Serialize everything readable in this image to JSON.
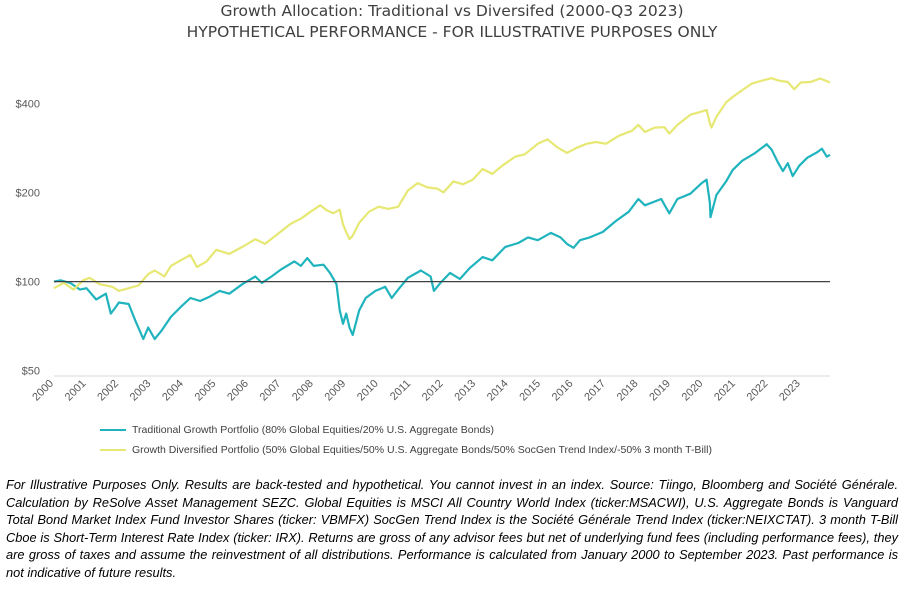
{
  "chart_data": {
    "type": "line",
    "title": "Growth Allocation: Traditional vs Diversifed (2000-Q3 2023)",
    "subtitle": "HYPOTHETICAL PERFORMANCE - FOR ILLUSTRATIVE PURPOSES ONLY",
    "y_scale": "log",
    "ylim": [
      48,
      560
    ],
    "xlim": [
      2000,
      2023.9
    ],
    "y_ticks": [
      {
        "value": 50,
        "label": "$50"
      },
      {
        "value": 100,
        "label": "$100"
      },
      {
        "value": 200,
        "label": "$200"
      },
      {
        "value": 400,
        "label": "$400"
      }
    ],
    "x_ticks": [
      "2000",
      "2001",
      "2002",
      "2003",
      "2004",
      "2005",
      "2006",
      "2007",
      "2008",
      "2009",
      "2010",
      "2011",
      "2012",
      "2013",
      "2014",
      "2015",
      "2016",
      "2017",
      "2018",
      "2019",
      "2020",
      "2021",
      "2022",
      "2023"
    ],
    "reference_line": 100,
    "series": [
      {
        "name": "Traditional Growth Portfolio (80% Global Equities/20% U.S. Aggregate Bonds)",
        "color": "#1fb4bd",
        "points": [
          [
            2000.0,
            100
          ],
          [
            2000.2,
            101
          ],
          [
            2000.5,
            99
          ],
          [
            2000.8,
            94
          ],
          [
            2001.0,
            95
          ],
          [
            2001.3,
            87
          ],
          [
            2001.6,
            91
          ],
          [
            2001.75,
            78
          ],
          [
            2001.9,
            82
          ],
          [
            2002.0,
            85
          ],
          [
            2002.3,
            84
          ],
          [
            2002.5,
            74
          ],
          [
            2002.75,
            64
          ],
          [
            2002.9,
            70
          ],
          [
            2003.1,
            64
          ],
          [
            2003.3,
            68
          ],
          [
            2003.6,
            76
          ],
          [
            2003.9,
            82
          ],
          [
            2004.2,
            88
          ],
          [
            2004.5,
            86
          ],
          [
            2004.8,
            89
          ],
          [
            2005.1,
            93
          ],
          [
            2005.4,
            91
          ],
          [
            2005.8,
            98
          ],
          [
            2006.2,
            104
          ],
          [
            2006.4,
            99
          ],
          [
            2006.7,
            104
          ],
          [
            2007.0,
            110
          ],
          [
            2007.4,
            117
          ],
          [
            2007.6,
            113
          ],
          [
            2007.8,
            120
          ],
          [
            2008.0,
            113
          ],
          [
            2008.3,
            114
          ],
          [
            2008.5,
            107
          ],
          [
            2008.7,
            98
          ],
          [
            2008.8,
            80
          ],
          [
            2008.9,
            72
          ],
          [
            2009.0,
            78
          ],
          [
            2009.1,
            70
          ],
          [
            2009.2,
            66
          ],
          [
            2009.4,
            80
          ],
          [
            2009.6,
            88
          ],
          [
            2009.9,
            93
          ],
          [
            2010.2,
            96
          ],
          [
            2010.4,
            88
          ],
          [
            2010.6,
            94
          ],
          [
            2010.9,
            103
          ],
          [
            2011.3,
            109
          ],
          [
            2011.6,
            104
          ],
          [
            2011.7,
            93
          ],
          [
            2011.9,
            99
          ],
          [
            2012.2,
            107
          ],
          [
            2012.5,
            102
          ],
          [
            2012.8,
            111
          ],
          [
            2013.2,
            121
          ],
          [
            2013.5,
            118
          ],
          [
            2013.9,
            131
          ],
          [
            2014.3,
            135
          ],
          [
            2014.6,
            141
          ],
          [
            2014.9,
            138
          ],
          [
            2015.3,
            146
          ],
          [
            2015.6,
            141
          ],
          [
            2015.8,
            134
          ],
          [
            2016.0,
            130
          ],
          [
            2016.2,
            138
          ],
          [
            2016.5,
            141
          ],
          [
            2016.9,
            147
          ],
          [
            2017.3,
            160
          ],
          [
            2017.7,
            172
          ],
          [
            2018.0,
            190
          ],
          [
            2018.2,
            181
          ],
          [
            2018.7,
            190
          ],
          [
            2018.95,
            170
          ],
          [
            2019.2,
            190
          ],
          [
            2019.6,
            198
          ],
          [
            2019.95,
            215
          ],
          [
            2020.1,
            221
          ],
          [
            2020.2,
            184
          ],
          [
            2020.22,
            165
          ],
          [
            2020.4,
            196
          ],
          [
            2020.7,
            218
          ],
          [
            2020.9,
            238
          ],
          [
            2021.2,
            256
          ],
          [
            2021.6,
            272
          ],
          [
            2021.95,
            291
          ],
          [
            2022.1,
            279
          ],
          [
            2022.3,
            252
          ],
          [
            2022.45,
            236
          ],
          [
            2022.6,
            251
          ],
          [
            2022.75,
            227
          ],
          [
            2022.95,
            246
          ],
          [
            2023.2,
            262
          ],
          [
            2023.5,
            273
          ],
          [
            2023.65,
            281
          ],
          [
            2023.8,
            264
          ],
          [
            2023.9,
            268
          ]
        ]
      },
      {
        "name": "Growth Diversified Portfolio (50% Global Equities/50% U.S. Aggregate Bonds/50% SocGen Trend Index/-50% 3 month T-Bill)",
        "color": "#e7e873",
        "points": [
          [
            2000.0,
            95
          ],
          [
            2000.3,
            99
          ],
          [
            2000.6,
            94
          ],
          [
            2000.9,
            101
          ],
          [
            2001.1,
            103
          ],
          [
            2001.4,
            98
          ],
          [
            2001.8,
            96
          ],
          [
            2002.0,
            93
          ],
          [
            2002.3,
            95
          ],
          [
            2002.6,
            97
          ],
          [
            2002.9,
            106
          ],
          [
            2003.1,
            109
          ],
          [
            2003.4,
            104
          ],
          [
            2003.6,
            113
          ],
          [
            2003.9,
            118
          ],
          [
            2004.2,
            123
          ],
          [
            2004.4,
            112
          ],
          [
            2004.7,
            117
          ],
          [
            2005.0,
            128
          ],
          [
            2005.4,
            124
          ],
          [
            2005.8,
            131
          ],
          [
            2006.2,
            139
          ],
          [
            2006.5,
            134
          ],
          [
            2006.9,
            145
          ],
          [
            2007.3,
            157
          ],
          [
            2007.6,
            163
          ],
          [
            2007.9,
            172
          ],
          [
            2008.2,
            181
          ],
          [
            2008.4,
            174
          ],
          [
            2008.6,
            170
          ],
          [
            2008.8,
            175
          ],
          [
            2008.9,
            156
          ],
          [
            2009.0,
            147
          ],
          [
            2009.1,
            139
          ],
          [
            2009.2,
            143
          ],
          [
            2009.4,
            158
          ],
          [
            2009.7,
            172
          ],
          [
            2010.0,
            179
          ],
          [
            2010.3,
            176
          ],
          [
            2010.6,
            179
          ],
          [
            2010.9,
            203
          ],
          [
            2011.2,
            215
          ],
          [
            2011.5,
            208
          ],
          [
            2011.8,
            206
          ],
          [
            2012.0,
            200
          ],
          [
            2012.3,
            218
          ],
          [
            2012.6,
            213
          ],
          [
            2012.9,
            221
          ],
          [
            2013.2,
            240
          ],
          [
            2013.5,
            231
          ],
          [
            2013.8,
            246
          ],
          [
            2014.2,
            264
          ],
          [
            2014.5,
            269
          ],
          [
            2014.9,
            292
          ],
          [
            2015.2,
            302
          ],
          [
            2015.5,
            284
          ],
          [
            2015.8,
            272
          ],
          [
            2016.1,
            283
          ],
          [
            2016.4,
            292
          ],
          [
            2016.7,
            296
          ],
          [
            2017.0,
            292
          ],
          [
            2017.4,
            311
          ],
          [
            2017.8,
            323
          ],
          [
            2018.0,
            338
          ],
          [
            2018.2,
            320
          ],
          [
            2018.5,
            331
          ],
          [
            2018.8,
            332
          ],
          [
            2018.95,
            316
          ],
          [
            2019.2,
            338
          ],
          [
            2019.6,
            366
          ],
          [
            2019.95,
            375
          ],
          [
            2020.1,
            380
          ],
          [
            2020.2,
            342
          ],
          [
            2020.25,
            331
          ],
          [
            2020.4,
            360
          ],
          [
            2020.7,
            403
          ],
          [
            2020.9,
            420
          ],
          [
            2021.2,
            443
          ],
          [
            2021.5,
            467
          ],
          [
            2021.9,
            480
          ],
          [
            2022.1,
            486
          ],
          [
            2022.3,
            478
          ],
          [
            2022.6,
            472
          ],
          [
            2022.8,
            446
          ],
          [
            2023.0,
            470
          ],
          [
            2023.3,
            472
          ],
          [
            2023.6,
            485
          ],
          [
            2023.9,
            470
          ]
        ]
      }
    ]
  },
  "footnote": "For Illustrative Purposes Only. Results are back-tested and hypothetical. You cannot invest in an index. Source: Tiingo, Bloomberg and Société Générale. Calculation by ReSolve Asset Management SEZC. Global Equities is MSCI All Country World Index (ticker:MSACWI), U.S. Aggregate Bonds is Vanguard Total Bond Market Index Fund Investor Shares (ticker: VBMFX) SocGen Trend Index is the Société Générale Trend Index (ticker:NEIXCTAT). 3 month T-Bill Cboe is Short-Term Interest Rate Index (ticker: IRX). Returns are gross of any advisor fees but net of underlying fund fees (including performance fees), they are gross of taxes and assume the reinvestment of all distributions. Performance is calculated from January 2000 to September 2023. Past performance is not indicative of future results."
}
